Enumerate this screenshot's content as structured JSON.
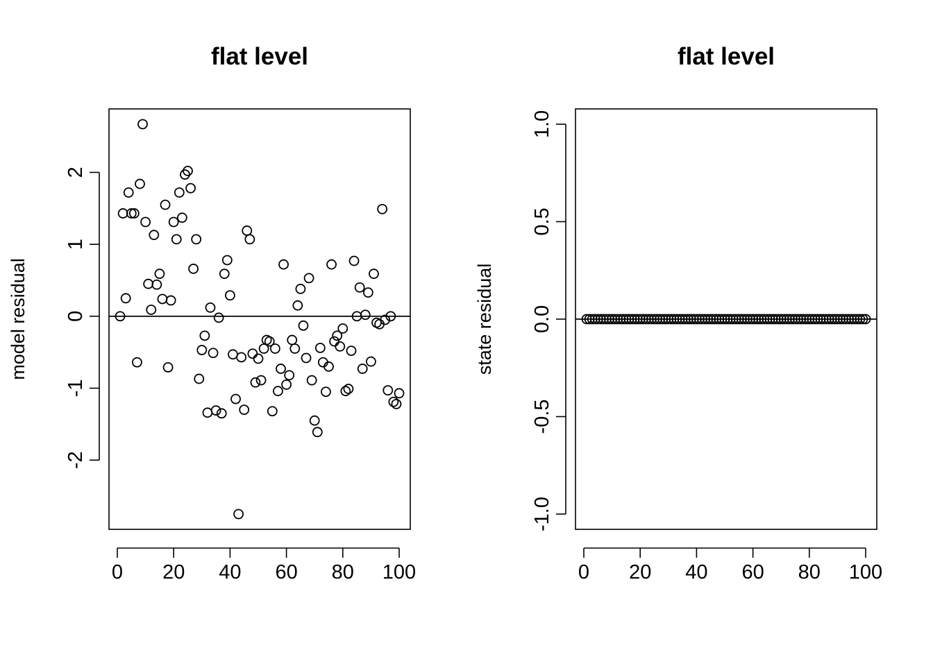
{
  "chart_data": [
    {
      "type": "scatter",
      "title": "flat level",
      "xlabel": "",
      "ylabel": "model residual",
      "xlim": [
        0,
        100
      ],
      "ylim": [
        -2.75,
        2.67
      ],
      "xticks": [
        0,
        20,
        40,
        60,
        80,
        100
      ],
      "yticks": [
        -2,
        -1,
        0,
        1,
        2
      ],
      "hline": 0,
      "grid": false,
      "x": [
        1,
        2,
        3,
        4,
        5,
        6,
        7,
        8,
        9,
        10,
        11,
        12,
        13,
        14,
        15,
        16,
        17,
        18,
        19,
        20,
        21,
        22,
        23,
        24,
        25,
        26,
        27,
        28,
        29,
        30,
        31,
        32,
        33,
        34,
        35,
        36,
        37,
        38,
        39,
        40,
        41,
        42,
        43,
        44,
        45,
        46,
        47,
        48,
        49,
        50,
        51,
        52,
        53,
        54,
        55,
        56,
        57,
        58,
        59,
        60,
        61,
        62,
        63,
        64,
        65,
        66,
        67,
        68,
        69,
        70,
        71,
        72,
        73,
        74,
        75,
        76,
        77,
        78,
        79,
        80,
        81,
        82,
        83,
        84,
        85,
        86,
        87,
        88,
        89,
        90,
        91,
        92,
        93,
        94,
        95,
        96,
        97,
        98,
        99,
        100
      ],
      "y": [
        0.0,
        1.43,
        0.25,
        1.72,
        1.43,
        1.43,
        -0.64,
        1.84,
        2.67,
        1.31,
        0.45,
        0.09,
        1.13,
        0.44,
        0.59,
        0.24,
        1.55,
        -0.71,
        0.22,
        1.31,
        1.07,
        1.72,
        1.37,
        1.97,
        2.02,
        1.78,
        0.66,
        1.07,
        -0.87,
        -0.47,
        -0.27,
        -1.34,
        0.12,
        -0.51,
        -1.31,
        -0.02,
        -1.35,
        0.59,
        0.78,
        0.29,
        -0.53,
        -1.15,
        -2.75,
        -0.57,
        -1.3,
        1.19,
        1.07,
        -0.52,
        -0.92,
        -0.59,
        -0.89,
        -0.45,
        -0.33,
        -0.35,
        -1.32,
        -0.45,
        -1.04,
        -0.73,
        0.72,
        -0.95,
        -0.82,
        -0.33,
        -0.45,
        0.15,
        0.38,
        -0.13,
        -0.58,
        0.53,
        -0.89,
        -1.45,
        -1.61,
        -0.44,
        -0.64,
        -1.05,
        -0.7,
        0.72,
        -0.35,
        -0.27,
        -0.42,
        -0.17,
        -1.04,
        -1.01,
        -0.48,
        0.77,
        0.0,
        0.4,
        -0.73,
        0.02,
        0.33,
        -0.63,
        0.59,
        -0.09,
        -0.11,
        1.49,
        -0.05,
        -1.03,
        0.0,
        -1.19,
        -1.22,
        -1.07
      ]
    },
    {
      "type": "scatter",
      "title": "flat level",
      "xlabel": "",
      "ylabel": "state residual",
      "xlim": [
        0,
        100
      ],
      "ylim": [
        -1.0,
        1.0
      ],
      "xticks": [
        0,
        20,
        40,
        60,
        80,
        100
      ],
      "yticks": [
        -1.0,
        -0.5,
        0.0,
        0.5,
        1.0
      ],
      "ytick_labels": [
        "-1.0",
        "-0.5",
        "0.0",
        "0.5",
        "1.0"
      ],
      "hline": 0,
      "grid": false,
      "x_range": [
        1,
        100
      ],
      "y_constant": 0.0
    }
  ]
}
